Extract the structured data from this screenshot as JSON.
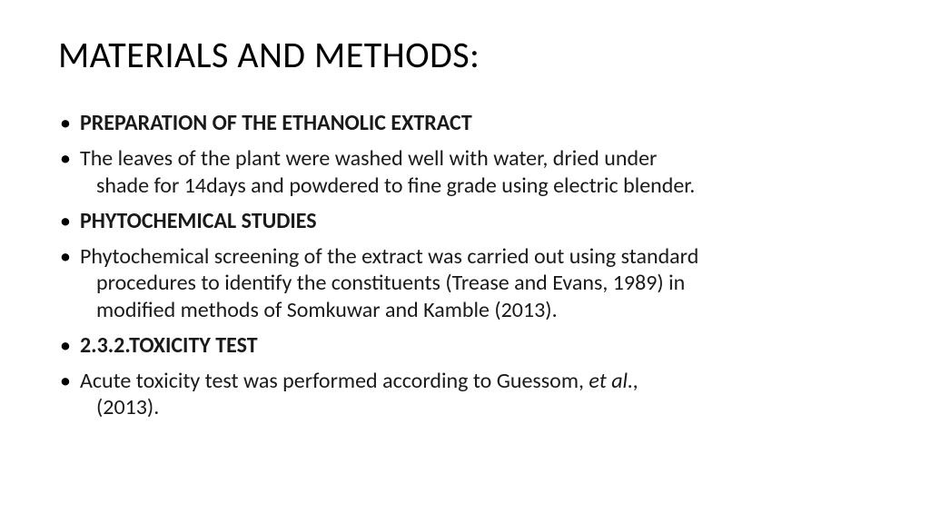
{
  "slide": {
    "title": "MATERIALS AND METHODS:",
    "bullets": [
      {
        "text": "PREPARATION OF THE ETHANOLIC EXTRACT",
        "bold": true
      },
      {
        "text": "The leaves of the plant were washed well with water, dried under",
        "cont": "shade for 14days and powdered to fine grade using electric blender."
      },
      {
        "text": " PHYTOCHEMICAL STUDIES",
        "bold": true
      },
      {
        "text": "Phytochemical screening of the extract was carried out using standard",
        "cont": "procedures to identify the constituents (Trease and Evans, 1989) in",
        "cont2": "modified methods of Somkuwar and Kamble (2013)."
      },
      {
        "text": "2.3.2.TOXICITY TEST",
        "bold": true
      },
      {
        "text_pre": "Acute toxicity test was performed according to Guessom, ",
        "text_italic": "et al.,",
        "cont": "(2013)."
      }
    ]
  },
  "style": {
    "background_color": "#ffffff",
    "text_color": "#000000",
    "title_fontsize": 40,
    "body_fontsize": 24,
    "font_family": "Calibri"
  }
}
